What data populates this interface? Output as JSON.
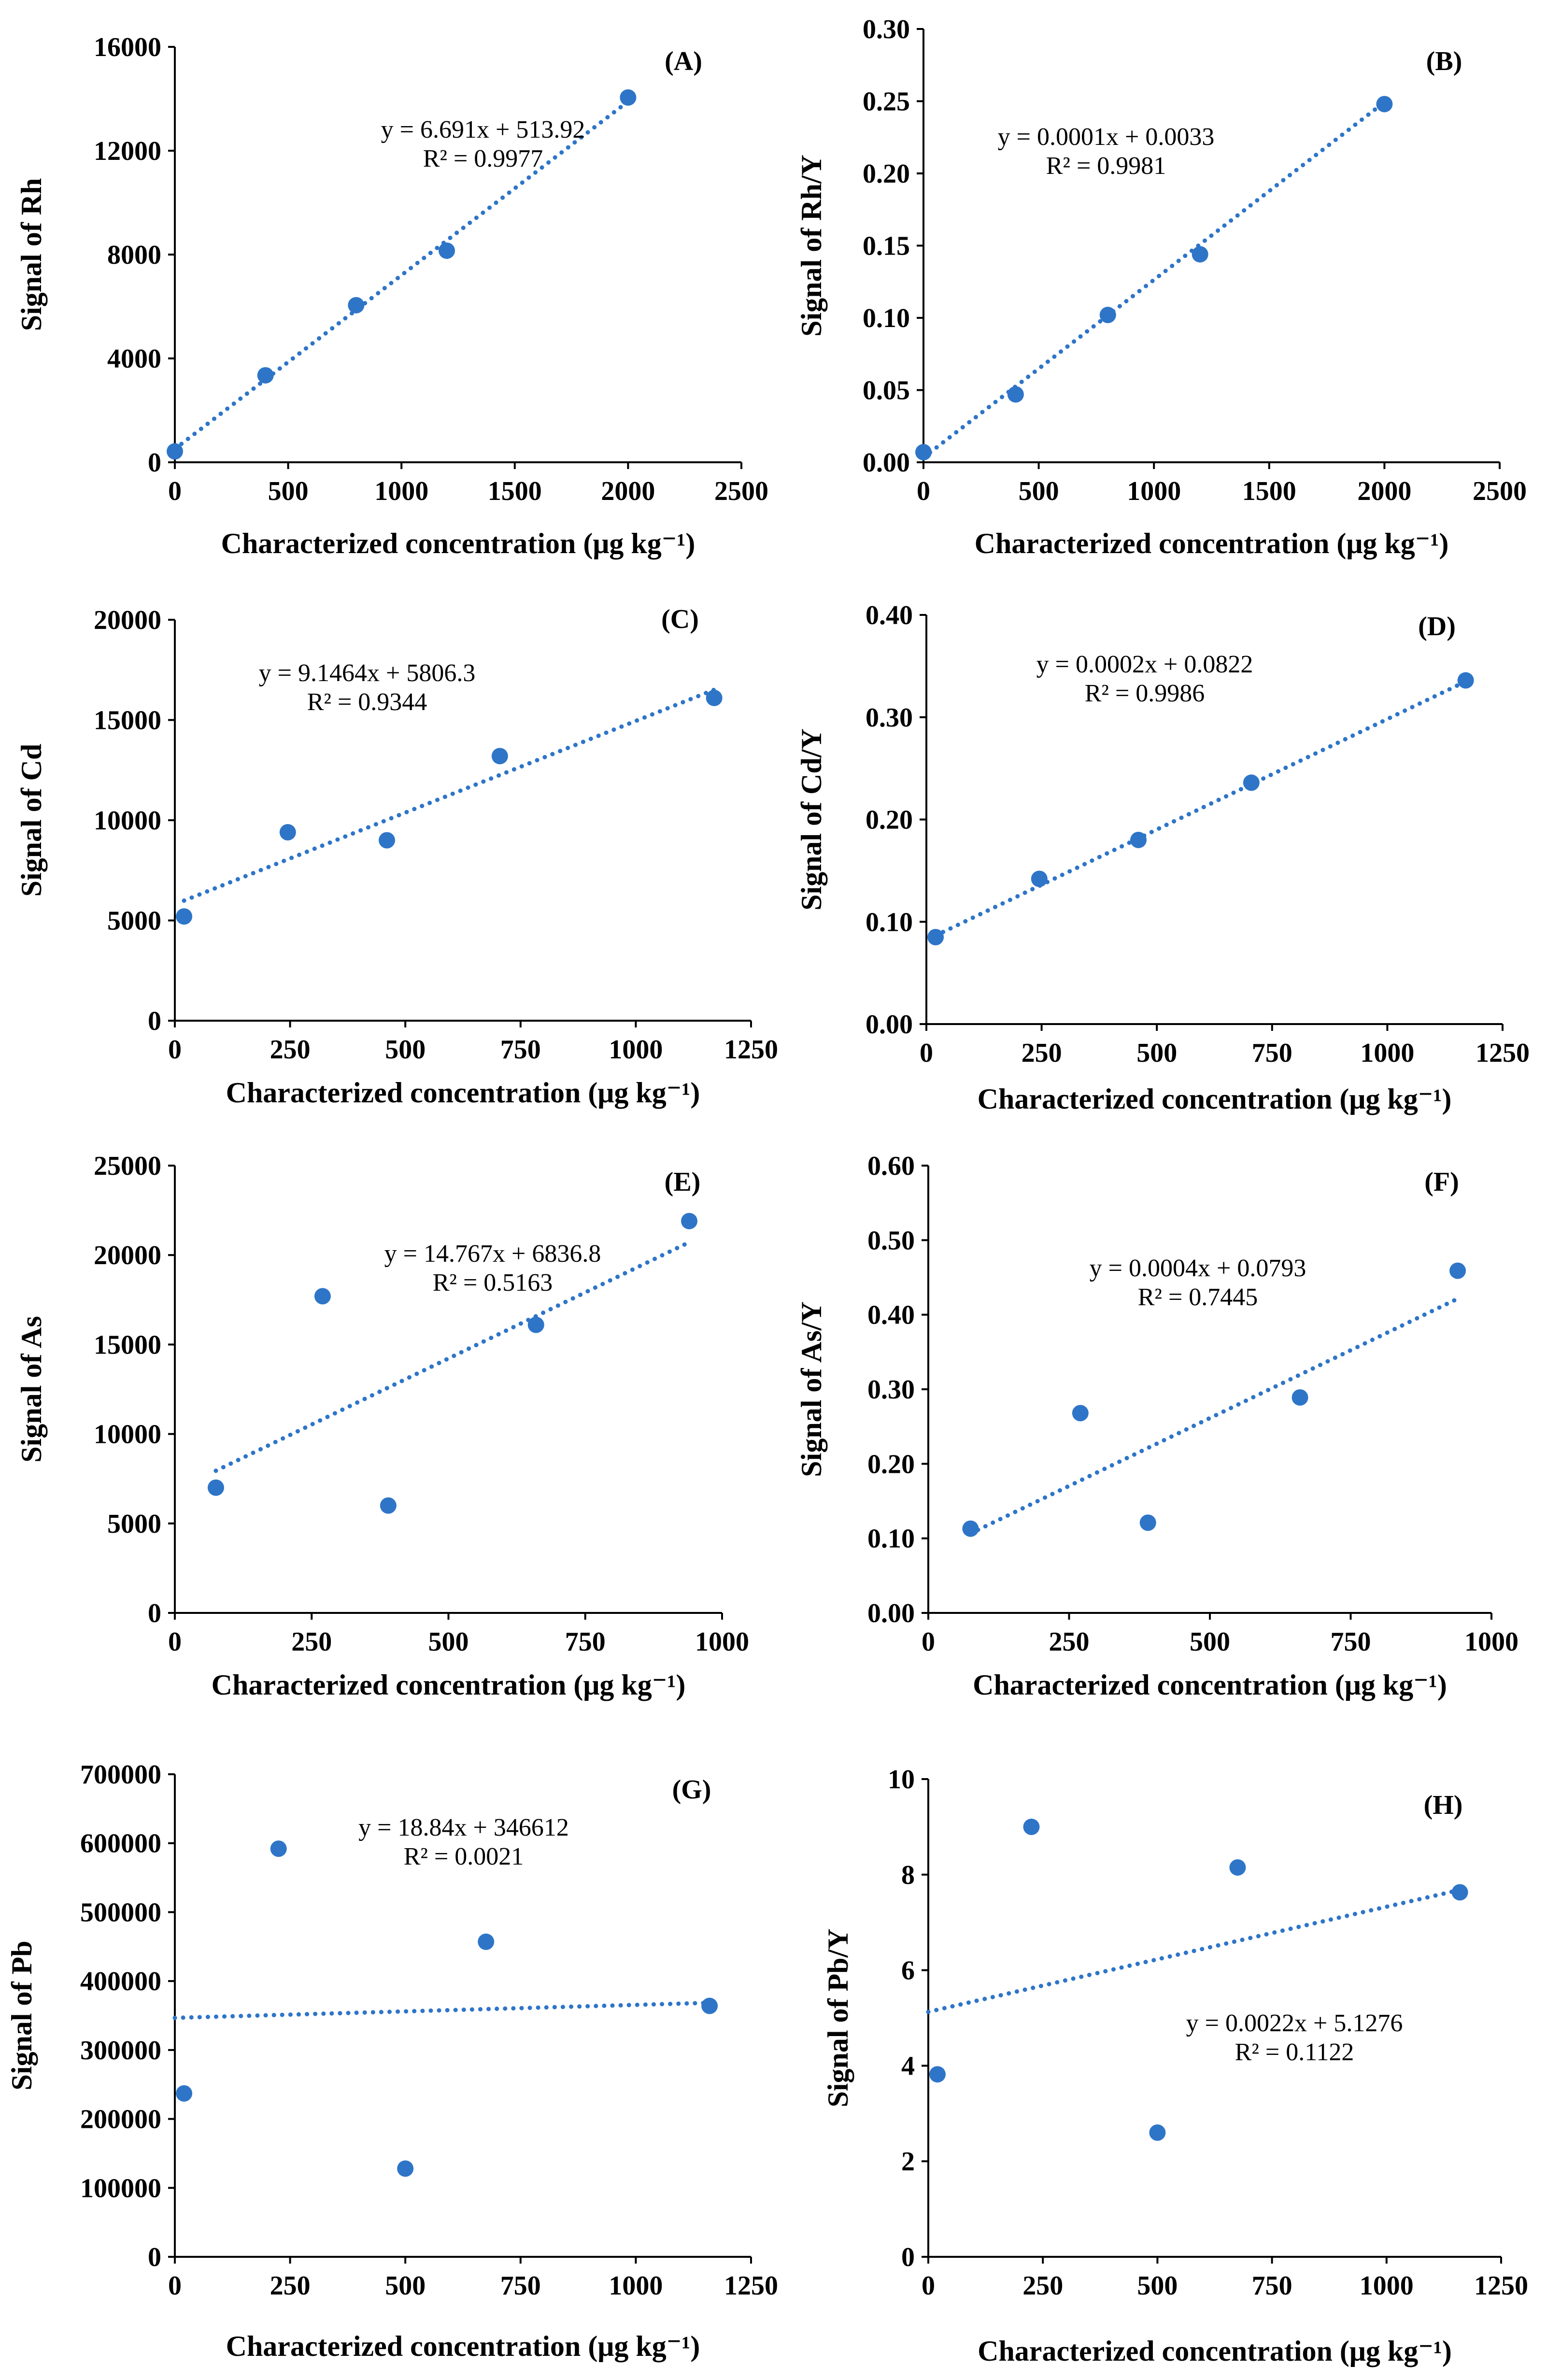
{
  "colors": {
    "point": "#2E75C8",
    "trend": "#2E75C8",
    "axis": "#000000"
  },
  "chart_data": [
    {
      "type": "scatter",
      "panel": "(A)",
      "xlabel": "Characterized concentration (μg kg⁻¹)",
      "ylabel": "Signal of Rh",
      "xlim": [
        0,
        2500
      ],
      "ylim": [
        0,
        16000
      ],
      "xticks": [
        0,
        500,
        1000,
        1500,
        2000,
        2500
      ],
      "xtick_labels": [
        "0",
        "500",
        "1000",
        "1500",
        "2000",
        "2500"
      ],
      "yticks": [
        0,
        4000,
        8000,
        12000,
        16000
      ],
      "ytick_labels": [
        "0",
        "4000",
        "8000",
        "12000",
        "16000"
      ],
      "x": [
        0,
        400,
        800,
        1200,
        2000
      ],
      "y": [
        420,
        3350,
        6050,
        8150,
        14050
      ],
      "trend": {
        "slope": 6.691,
        "intercept": 513.92,
        "x_range": [
          0,
          2000
        ]
      },
      "equation": "y = 6.691x + 513.92",
      "r2": "R² = 0.9977"
    },
    {
      "type": "scatter",
      "panel": "(B)",
      "xlabel": "Characterized concentration (μg kg⁻¹)",
      "ylabel": "Signal of Rh/Y",
      "xlim": [
        0,
        2500
      ],
      "ylim": [
        0,
        0.3
      ],
      "xticks": [
        0,
        500,
        1000,
        1500,
        2000,
        2500
      ],
      "xtick_labels": [
        "0",
        "500",
        "1000",
        "1500",
        "2000",
        "2500"
      ],
      "yticks": [
        0,
        0.05,
        0.1,
        0.15,
        0.2,
        0.25,
        0.3
      ],
      "ytick_labels": [
        "0.00",
        "0.05",
        "0.10",
        "0.15",
        "0.20",
        "0.25",
        "0.30"
      ],
      "x": [
        0,
        400,
        800,
        1200,
        2000
      ],
      "y": [
        0.007,
        0.047,
        0.102,
        0.144,
        0.248
      ],
      "trend": {
        "slope": 0.000123,
        "intercept": 0.0033,
        "x_range": [
          0,
          2000
        ]
      },
      "equation": "y = 0.0001x + 0.0033",
      "r2": "R² = 0.9981"
    },
    {
      "type": "scatter",
      "panel": "(C)",
      "xlabel": "Characterized concentration (μg kg⁻¹)",
      "ylabel": "Signal of Cd",
      "xlim": [
        0,
        1250
      ],
      "ylim": [
        0,
        20000
      ],
      "xticks": [
        0,
        250,
        500,
        750,
        1000,
        1250
      ],
      "xtick_labels": [
        "0",
        "250",
        "500",
        "750",
        "1000",
        "1250"
      ],
      "yticks": [
        0,
        5000,
        10000,
        15000,
        20000
      ],
      "ytick_labels": [
        "0",
        "5000",
        "10000",
        "15000",
        "20000"
      ],
      "x": [
        20,
        245,
        460,
        705,
        1170
      ],
      "y": [
        5200,
        9400,
        9000,
        13200,
        16100
      ],
      "trend": {
        "slope": 9.1464,
        "intercept": 5806.3,
        "x_range": [
          20,
          1170
        ]
      },
      "equation": "y = 9.1464x + 5806.3",
      "r2": "R² = 0.9344"
    },
    {
      "type": "scatter",
      "panel": "(D)",
      "xlabel": "Characterized concentration (μg kg⁻¹)",
      "ylabel": "Signal of Cd/Y",
      "xlim": [
        0,
        1250
      ],
      "ylim": [
        0,
        0.4
      ],
      "xticks": [
        0,
        250,
        500,
        750,
        1000,
        1250
      ],
      "xtick_labels": [
        "0",
        "250",
        "500",
        "750",
        "1000",
        "1250"
      ],
      "yticks": [
        0,
        0.1,
        0.2,
        0.3,
        0.4
      ],
      "ytick_labels": [
        "0.00",
        "0.10",
        "0.20",
        "0.30",
        "0.40"
      ],
      "x": [
        20,
        245,
        460,
        705,
        1170
      ],
      "y": [
        0.085,
        0.142,
        0.18,
        0.236,
        0.336
      ],
      "trend": {
        "slope": 0.000216,
        "intercept": 0.0822,
        "x_range": [
          20,
          1170
        ]
      },
      "equation": "y = 0.0002x + 0.0822",
      "r2": "R² = 0.9986"
    },
    {
      "type": "scatter",
      "panel": "(E)",
      "xlabel": "Characterized concentration (μg kg⁻¹)",
      "ylabel": "Signal of As",
      "xlim": [
        0,
        1000
      ],
      "ylim": [
        0,
        25000
      ],
      "xticks": [
        0,
        250,
        500,
        750,
        1000
      ],
      "xtick_labels": [
        "0",
        "250",
        "500",
        "750",
        "1000"
      ],
      "yticks": [
        0,
        5000,
        10000,
        15000,
        20000,
        25000
      ],
      "ytick_labels": [
        "0",
        "5000",
        "10000",
        "15000",
        "20000",
        "25000"
      ],
      "x": [
        75,
        270,
        390,
        660,
        940
      ],
      "y": [
        7000,
        17700,
        6000,
        16100,
        21900
      ],
      "trend": {
        "slope": 14.767,
        "intercept": 6836.8,
        "x_range": [
          75,
          940
        ]
      },
      "equation": "y = 14.767x + 6836.8",
      "r2": "R² = 0.5163"
    },
    {
      "type": "scatter",
      "panel": "(F)",
      "xlabel": "Characterized concentration (μg kg⁻¹)",
      "ylabel": "Signal of As/Y",
      "xlim": [
        0,
        1000
      ],
      "ylim": [
        0,
        0.6
      ],
      "xticks": [
        0,
        250,
        500,
        750,
        1000
      ],
      "xtick_labels": [
        "0",
        "250",
        "500",
        "750",
        "1000"
      ],
      "yticks": [
        0,
        0.1,
        0.2,
        0.3,
        0.4,
        0.5,
        0.6
      ],
      "ytick_labels": [
        "0.00",
        "0.10",
        "0.20",
        "0.30",
        "0.40",
        "0.50",
        "0.60"
      ],
      "x": [
        75,
        270,
        390,
        660,
        940
      ],
      "y": [
        0.113,
        0.268,
        0.121,
        0.289,
        0.459
      ],
      "trend": {
        "slope": 0.000364,
        "intercept": 0.0793,
        "x_range": [
          75,
          940
        ]
      },
      "equation": "y = 0.0004x + 0.0793",
      "r2": "R² = 0.7445"
    },
    {
      "type": "scatter",
      "panel": "(G)",
      "xlabel": "Characterized concentration (μg kg⁻¹)",
      "ylabel": "Signal of Pb",
      "xlim": [
        0,
        1250
      ],
      "ylim": [
        0,
        700000
      ],
      "xticks": [
        0,
        250,
        500,
        750,
        1000,
        1250
      ],
      "xtick_labels": [
        "0",
        "250",
        "500",
        "750",
        "1000",
        "1250"
      ],
      "yticks": [
        0,
        100000,
        200000,
        300000,
        400000,
        500000,
        600000,
        700000
      ],
      "ytick_labels": [
        "0",
        "100000",
        "200000",
        "300000",
        "400000",
        "500000",
        "600000",
        "700000"
      ],
      "x": [
        20,
        225,
        500,
        675,
        1160
      ],
      "y": [
        237000,
        592000,
        128000,
        457000,
        364000
      ],
      "trend": {
        "slope": 18.84,
        "intercept": 346612,
        "x_range": [
          0,
          1160
        ]
      },
      "equation": "y = 18.84x + 346612",
      "r2": "R² = 0.0021"
    },
    {
      "type": "scatter",
      "panel": "(H)",
      "xlabel": "Characterized concentration (μg kg⁻¹)",
      "ylabel": "Signal of Pb/Y",
      "xlim": [
        0,
        1250
      ],
      "ylim": [
        0,
        10
      ],
      "xticks": [
        0,
        250,
        500,
        750,
        1000,
        1250
      ],
      "xtick_labels": [
        "0",
        "250",
        "500",
        "750",
        "1000",
        "1250"
      ],
      "yticks": [
        0,
        2,
        4,
        6,
        8,
        10
      ],
      "ytick_labels": [
        "0",
        "2",
        "4",
        "6",
        "8",
        "10"
      ],
      "x": [
        20,
        225,
        500,
        675,
        1160
      ],
      "y": [
        3.82,
        9.0,
        2.6,
        8.15,
        7.63
      ],
      "trend": {
        "slope": 0.0022,
        "intercept": 5.1276,
        "x_range": [
          0,
          1160
        ]
      },
      "equation": "y = 0.0022x + 5.1276",
      "r2": "R² = 0.1122"
    }
  ]
}
